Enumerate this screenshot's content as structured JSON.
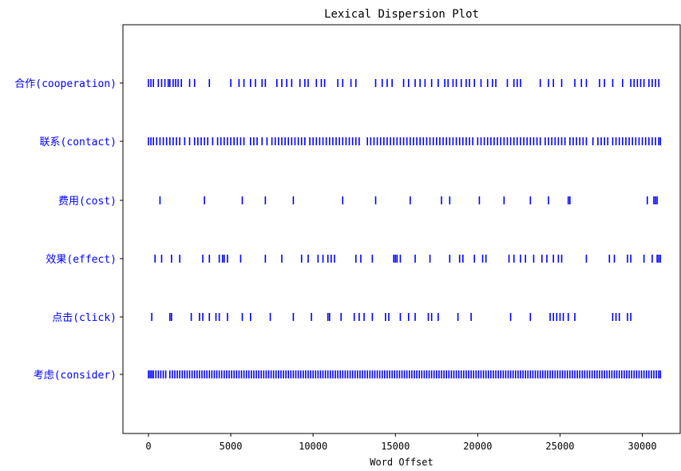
{
  "chart_data": {
    "type": "scatter",
    "subtype": "lexical-dispersion",
    "title": "Lexical Dispersion Plot",
    "xlabel": "Word Offset",
    "ylabel": "",
    "xlim": [
      -1550,
      32300
    ],
    "x_ticks": [
      0,
      5000,
      10000,
      15000,
      20000,
      25000,
      30000
    ],
    "x_tick_labels": [
      "0",
      "5000",
      "10000",
      "15000",
      "20000",
      "25000",
      "30000"
    ],
    "grid": false,
    "legend": "none",
    "colors": {
      "marks": "#0000ff",
      "labels": "#0000ff",
      "axes": "#000000"
    },
    "series": [
      {
        "name": "合作(cooperation)",
        "x": [
          0,
          150,
          300,
          600,
          800,
          1000,
          1200,
          1300,
          1500,
          1650,
          1800,
          2000,
          2500,
          2800,
          3700,
          5000,
          5500,
          5800,
          6200,
          6500,
          6900,
          7100,
          7800,
          8100,
          8400,
          8700,
          9200,
          9500,
          9700,
          10200,
          10500,
          10700,
          11500,
          11800,
          12300,
          12600,
          13800,
          14200,
          14500,
          14800,
          15500,
          15800,
          16200,
          16500,
          16800,
          17200,
          17600,
          18000,
          18200,
          18500,
          18700,
          19000,
          19300,
          19500,
          19800,
          20200,
          20600,
          20900,
          21100,
          21800,
          22200,
          22400,
          22600,
          23800,
          24300,
          24600,
          25100,
          25900,
          26300,
          26600,
          27400,
          27700,
          28200,
          28800,
          29300,
          29500,
          29700,
          29900,
          30100,
          30400,
          30600,
          30800,
          31000
        ]
      },
      {
        "name": "联系(contact)",
        "x": [
          0,
          150,
          300,
          500,
          700,
          900,
          1100,
          1300,
          1500,
          1700,
          1900,
          2200,
          2500,
          2800,
          3000,
          3200,
          3400,
          3600,
          3900,
          4200,
          4400,
          4600,
          4800,
          5000,
          5200,
          5400,
          5600,
          5800,
          6200,
          6400,
          6600,
          6900,
          7200,
          7500,
          7700,
          7900,
          8100,
          8300,
          8500,
          8700,
          8900,
          9100,
          9300,
          9500,
          9800,
          10000,
          10200,
          10400,
          10600,
          10800,
          11000,
          11200,
          11400,
          11600,
          11800,
          12000,
          12200,
          12400,
          12600,
          12800,
          13300,
          13500,
          13700,
          13900,
          14100,
          14300,
          14500,
          14700,
          14900,
          15100,
          15300,
          15500,
          15700,
          15900,
          16100,
          16300,
          16500,
          16700,
          16900,
          17100,
          17300,
          17500,
          17700,
          17900,
          18100,
          18300,
          18500,
          18700,
          18900,
          19100,
          19300,
          19500,
          19700,
          20000,
          20200,
          20400,
          20600,
          20800,
          21000,
          21200,
          21400,
          21600,
          21800,
          22000,
          22200,
          22400,
          22600,
          22800,
          23000,
          23200,
          23400,
          23600,
          23800,
          24100,
          24300,
          24500,
          24700,
          24900,
          25100,
          25300,
          25600,
          25800,
          26000,
          26200,
          26400,
          26600,
          27000,
          27300,
          27500,
          27700,
          27900,
          28200,
          28400,
          28600,
          28800,
          29000,
          29200,
          29400,
          29600,
          29800,
          30000,
          30200,
          30400,
          30600,
          30800,
          31000,
          31100
        ]
      },
      {
        "name": "费用(cost)",
        "x": [
          700,
          3400,
          5700,
          7100,
          8800,
          11800,
          13800,
          15900,
          17800,
          18300,
          20100,
          21600,
          23200,
          24300,
          25500,
          25600,
          30300,
          30700,
          30800,
          30900
        ]
      },
      {
        "name": "效果(effect)",
        "x": [
          400,
          800,
          1400,
          1900,
          3300,
          3700,
          4300,
          4500,
          4600,
          4800,
          5600,
          7100,
          8100,
          9300,
          9700,
          10300,
          10600,
          10900,
          11100,
          11300,
          12600,
          12900,
          13600,
          14900,
          15000,
          15100,
          15300,
          16200,
          17100,
          18300,
          18900,
          19100,
          19800,
          20300,
          20500,
          21900,
          22200,
          22600,
          22900,
          23400,
          23900,
          24200,
          24600,
          24900,
          25100,
          26600,
          28000,
          28300,
          29100,
          29300,
          30100,
          30600,
          30900,
          31000,
          31100
        ]
      },
      {
        "name": "点击(click)",
        "x": [
          200,
          1300,
          1400,
          2600,
          3100,
          3300,
          3700,
          4100,
          4300,
          4800,
          5700,
          6200,
          7400,
          8800,
          9900,
          10900,
          11000,
          11700,
          12500,
          12800,
          13100,
          13600,
          14400,
          14600,
          15300,
          15800,
          16200,
          17000,
          17200,
          17600,
          18800,
          19600,
          22000,
          23200,
          24400,
          24600,
          24800,
          25000,
          25200,
          25500,
          25900,
          28200,
          28400,
          28600,
          29100,
          29300
        ]
      },
      {
        "name": "考虑(consider)",
        "x": [
          0,
          100,
          200,
          300,
          450,
          600,
          750,
          900,
          1050,
          1300,
          1450,
          1600,
          1750,
          1900,
          2050,
          2200,
          2350,
          2500,
          2650,
          2800,
          2950,
          3100,
          3250,
          3400,
          3550,
          3700,
          3850,
          4000,
          4150,
          4300,
          4450,
          4600,
          4750,
          4900,
          5050,
          5200,
          5350,
          5500,
          5650,
          5800,
          5950,
          6100,
          6250,
          6400,
          6550,
          6700,
          6850,
          7000,
          7150,
          7300,
          7450,
          7600,
          7750,
          7900,
          8050,
          8200,
          8350,
          8500,
          8650,
          8800,
          8950,
          9100,
          9250,
          9400,
          9550,
          9700,
          9850,
          10000,
          10150,
          10300,
          10450,
          10600,
          10750,
          10900,
          11050,
          11200,
          11350,
          11500,
          11650,
          11800,
          11950,
          12100,
          12250,
          12400,
          12550,
          12700,
          12850,
          13000,
          13150,
          13300,
          13450,
          13600,
          13750,
          13900,
          14050,
          14200,
          14350,
          14500,
          14650,
          14800,
          14950,
          15100,
          15250,
          15400,
          15550,
          15700,
          15850,
          16000,
          16150,
          16300,
          16450,
          16600,
          16750,
          16900,
          17050,
          17200,
          17350,
          17500,
          17650,
          17800,
          17950,
          18100,
          18250,
          18400,
          18550,
          18700,
          18850,
          19000,
          19150,
          19300,
          19450,
          19600,
          19750,
          19900,
          20050,
          20200,
          20350,
          20500,
          20650,
          20800,
          20950,
          21100,
          21250,
          21400,
          21550,
          21700,
          21850,
          22000,
          22150,
          22300,
          22450,
          22600,
          22750,
          22900,
          23050,
          23200,
          23350,
          23500,
          23650,
          23800,
          23950,
          24100,
          24250,
          24400,
          24550,
          24700,
          24850,
          25000,
          25150,
          25300,
          25450,
          25600,
          25750,
          25900,
          26050,
          26200,
          26350,
          26500,
          26650,
          26800,
          26950,
          27100,
          27250,
          27400,
          27550,
          27700,
          27850,
          28000,
          28150,
          28300,
          28450,
          28600,
          28750,
          28900,
          29050,
          29200,
          29350,
          29500,
          29650,
          29800,
          29950,
          30100,
          30250,
          30400,
          30550,
          30700,
          30850,
          31000,
          31100
        ]
      }
    ]
  }
}
